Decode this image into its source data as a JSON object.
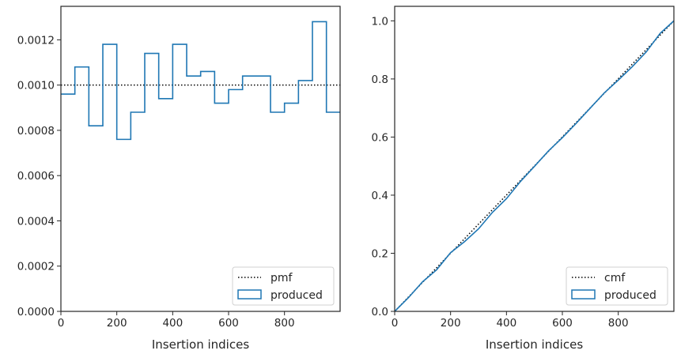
{
  "chart_data": [
    {
      "type": "histogram-step",
      "xlabel": "Insertion indices",
      "ylabel": "",
      "xlim": [
        0,
        999
      ],
      "ylim": [
        0,
        0.001348
      ],
      "xticks": [
        0,
        200,
        400,
        600,
        800
      ],
      "xtick_labels": [
        "0",
        "200",
        "400",
        "600",
        "800"
      ],
      "yticks": [
        0,
        0.0002,
        0.0004,
        0.0006,
        0.0008,
        0.001,
        0.0012
      ],
      "ytick_labels": [
        "0.0000",
        "0.0002",
        "0.0004",
        "0.0006",
        "0.0008",
        "0.0010",
        "0.0012"
      ],
      "legend": {
        "placement": "lower-right",
        "entries": [
          "pmf",
          "produced"
        ]
      },
      "series": [
        {
          "name": "pmf",
          "style": "dotted",
          "color": "#000000",
          "x": [
            0,
            999
          ],
          "values": [
            0.001,
            0.001
          ]
        },
        {
          "name": "produced",
          "style": "step",
          "color": "#1f77b4",
          "bin_edges": [
            0,
            50,
            100,
            150,
            200,
            250,
            300,
            350,
            400,
            450,
            500,
            550,
            600,
            650,
            700,
            750,
            800,
            850,
            900,
            950,
            999
          ],
          "values": [
            0.00096,
            0.00108,
            0.00082,
            0.00118,
            0.00076,
            0.00088,
            0.00114,
            0.00094,
            0.00118,
            0.00104,
            0.00106,
            0.00092,
            0.00098,
            0.00104,
            0.00104,
            0.00088,
            0.00092,
            0.00102,
            0.00128,
            0.00088
          ]
        }
      ]
    },
    {
      "type": "line",
      "xlabel": "Insertion indices",
      "ylabel": "",
      "xlim": [
        0,
        999
      ],
      "ylim": [
        0,
        1.05
      ],
      "xticks": [
        0,
        200,
        400,
        600,
        800
      ],
      "xtick_labels": [
        "0",
        "200",
        "400",
        "600",
        "800"
      ],
      "yticks": [
        0,
        0.2,
        0.4,
        0.6,
        0.8,
        1.0
      ],
      "ytick_labels": [
        "0.0",
        "0.2",
        "0.4",
        "0.6",
        "0.8",
        "1.0"
      ],
      "legend": {
        "placement": "lower-right",
        "entries": [
          "cmf",
          "produced"
        ]
      },
      "series": [
        {
          "name": "cmf",
          "style": "dotted",
          "color": "#000000",
          "x": [
            0,
            999
          ],
          "values": [
            0,
            1
          ]
        },
        {
          "name": "produced",
          "style": "line",
          "color": "#1f77b4",
          "x": [
            0,
            50,
            100,
            150,
            200,
            250,
            300,
            350,
            400,
            450,
            500,
            550,
            600,
            650,
            700,
            750,
            800,
            850,
            900,
            950,
            999
          ],
          "values": [
            0,
            0.048,
            0.102,
            0.143,
            0.202,
            0.24,
            0.284,
            0.341,
            0.388,
            0.447,
            0.499,
            0.552,
            0.598,
            0.648,
            0.7,
            0.752,
            0.796,
            0.842,
            0.893,
            0.957,
            1.0
          ]
        }
      ]
    }
  ]
}
